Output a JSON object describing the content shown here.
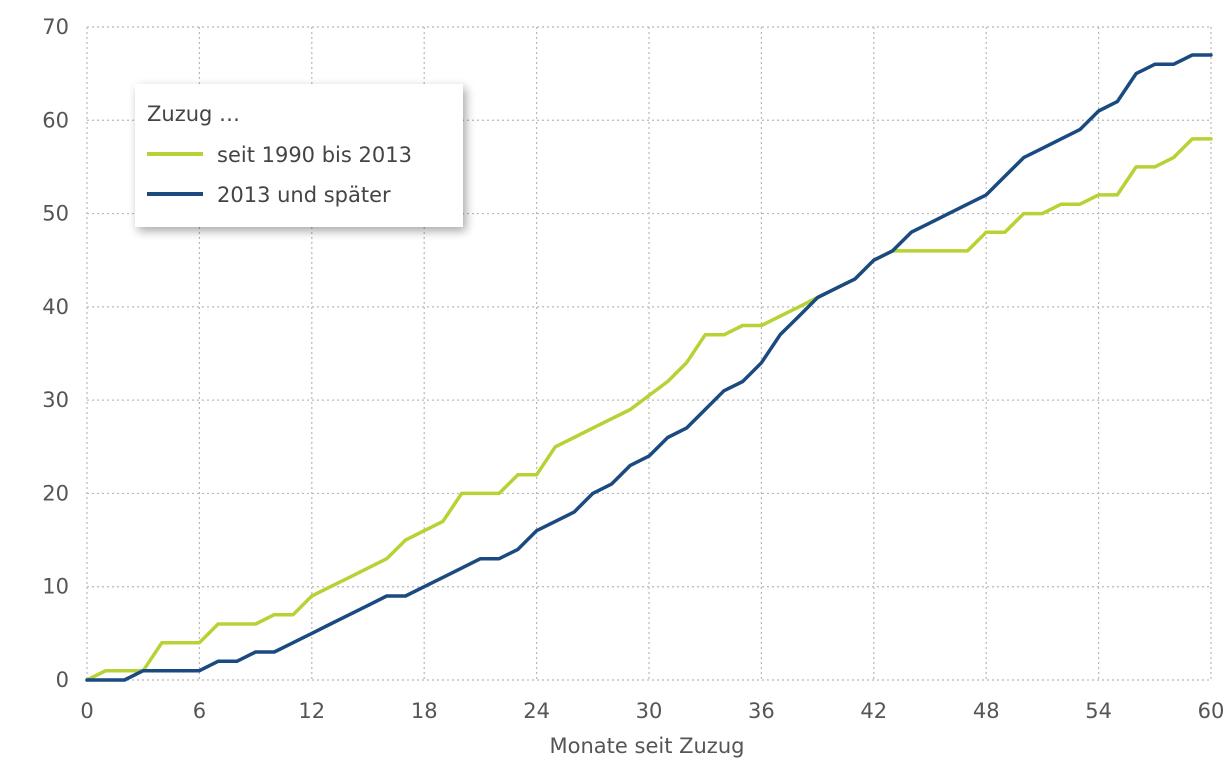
{
  "chart_data": {
    "type": "line",
    "xlabel": "Monate seit Zuzug",
    "ylabel": "",
    "xlim": [
      0,
      60
    ],
    "ylim": [
      0,
      70
    ],
    "xticks": [
      0,
      6,
      12,
      18,
      24,
      30,
      36,
      42,
      48,
      54,
      60
    ],
    "yticks": [
      0,
      10,
      20,
      30,
      40,
      50,
      60,
      70
    ],
    "grid": true,
    "legend": {
      "title": "Zuzug …",
      "placement": "top-left"
    },
    "series": [
      {
        "name": "seit 1990 bis 2013",
        "color": "#b5d334",
        "points": [
          [
            0,
            0
          ],
          [
            1,
            1
          ],
          [
            2,
            1
          ],
          [
            3,
            1
          ],
          [
            4,
            4
          ],
          [
            5,
            4
          ],
          [
            6,
            4
          ],
          [
            7,
            6
          ],
          [
            8,
            6
          ],
          [
            9,
            6
          ],
          [
            10,
            7
          ],
          [
            11,
            7
          ],
          [
            12,
            9
          ],
          [
            13,
            10
          ],
          [
            14,
            11
          ],
          [
            15,
            12
          ],
          [
            16,
            13
          ],
          [
            17,
            15
          ],
          [
            18,
            16
          ],
          [
            19,
            17
          ],
          [
            20,
            20
          ],
          [
            21,
            20
          ],
          [
            22,
            20
          ],
          [
            23,
            22
          ],
          [
            24,
            22
          ],
          [
            25,
            25
          ],
          [
            26,
            26
          ],
          [
            27,
            27
          ],
          [
            28,
            28
          ],
          [
            29,
            29
          ],
          [
            30,
            30.5
          ],
          [
            31,
            32
          ],
          [
            32,
            34
          ],
          [
            33,
            37
          ],
          [
            34,
            37
          ],
          [
            35,
            38
          ],
          [
            36,
            38
          ],
          [
            37,
            39
          ],
          [
            38,
            40
          ],
          [
            39,
            41
          ],
          [
            40,
            42
          ],
          [
            41,
            43
          ],
          [
            42,
            45
          ],
          [
            43,
            46
          ],
          [
            44,
            46
          ],
          [
            45,
            46
          ],
          [
            46,
            46
          ],
          [
            47,
            46
          ],
          [
            48,
            48
          ],
          [
            49,
            48
          ],
          [
            50,
            50
          ],
          [
            51,
            50
          ],
          [
            52,
            51
          ],
          [
            53,
            51
          ],
          [
            54,
            52
          ],
          [
            55,
            52
          ],
          [
            56,
            55
          ],
          [
            57,
            55
          ],
          [
            58,
            56
          ],
          [
            59,
            58
          ],
          [
            60,
            58
          ]
        ]
      },
      {
        "name": "2013 und später",
        "color": "#1a4a80",
        "points": [
          [
            0,
            0
          ],
          [
            1,
            0
          ],
          [
            2,
            0
          ],
          [
            3,
            1
          ],
          [
            4,
            1
          ],
          [
            5,
            1
          ],
          [
            6,
            1
          ],
          [
            7,
            2
          ],
          [
            8,
            2
          ],
          [
            9,
            3
          ],
          [
            10,
            3
          ],
          [
            11,
            4
          ],
          [
            12,
            5
          ],
          [
            13,
            6
          ],
          [
            14,
            7
          ],
          [
            15,
            8
          ],
          [
            16,
            9
          ],
          [
            17,
            9
          ],
          [
            18,
            10
          ],
          [
            19,
            11
          ],
          [
            20,
            12
          ],
          [
            21,
            13
          ],
          [
            22,
            13
          ],
          [
            23,
            14
          ],
          [
            24,
            16
          ],
          [
            25,
            17
          ],
          [
            26,
            18
          ],
          [
            27,
            20
          ],
          [
            28,
            21
          ],
          [
            29,
            23
          ],
          [
            30,
            24
          ],
          [
            31,
            26
          ],
          [
            32,
            27
          ],
          [
            33,
            29
          ],
          [
            34,
            31
          ],
          [
            35,
            32
          ],
          [
            36,
            34
          ],
          [
            37,
            37
          ],
          [
            38,
            39
          ],
          [
            39,
            41
          ],
          [
            40,
            42
          ],
          [
            41,
            43
          ],
          [
            42,
            45
          ],
          [
            43,
            46
          ],
          [
            44,
            48
          ],
          [
            45,
            49
          ],
          [
            46,
            50
          ],
          [
            47,
            51
          ],
          [
            48,
            52
          ],
          [
            49,
            54
          ],
          [
            50,
            56
          ],
          [
            51,
            57
          ],
          [
            52,
            58
          ],
          [
            53,
            59
          ],
          [
            54,
            61
          ],
          [
            55,
            62
          ],
          [
            56,
            65
          ],
          [
            57,
            66
          ],
          [
            58,
            66
          ],
          [
            59,
            67
          ],
          [
            60,
            67
          ]
        ]
      }
    ]
  }
}
